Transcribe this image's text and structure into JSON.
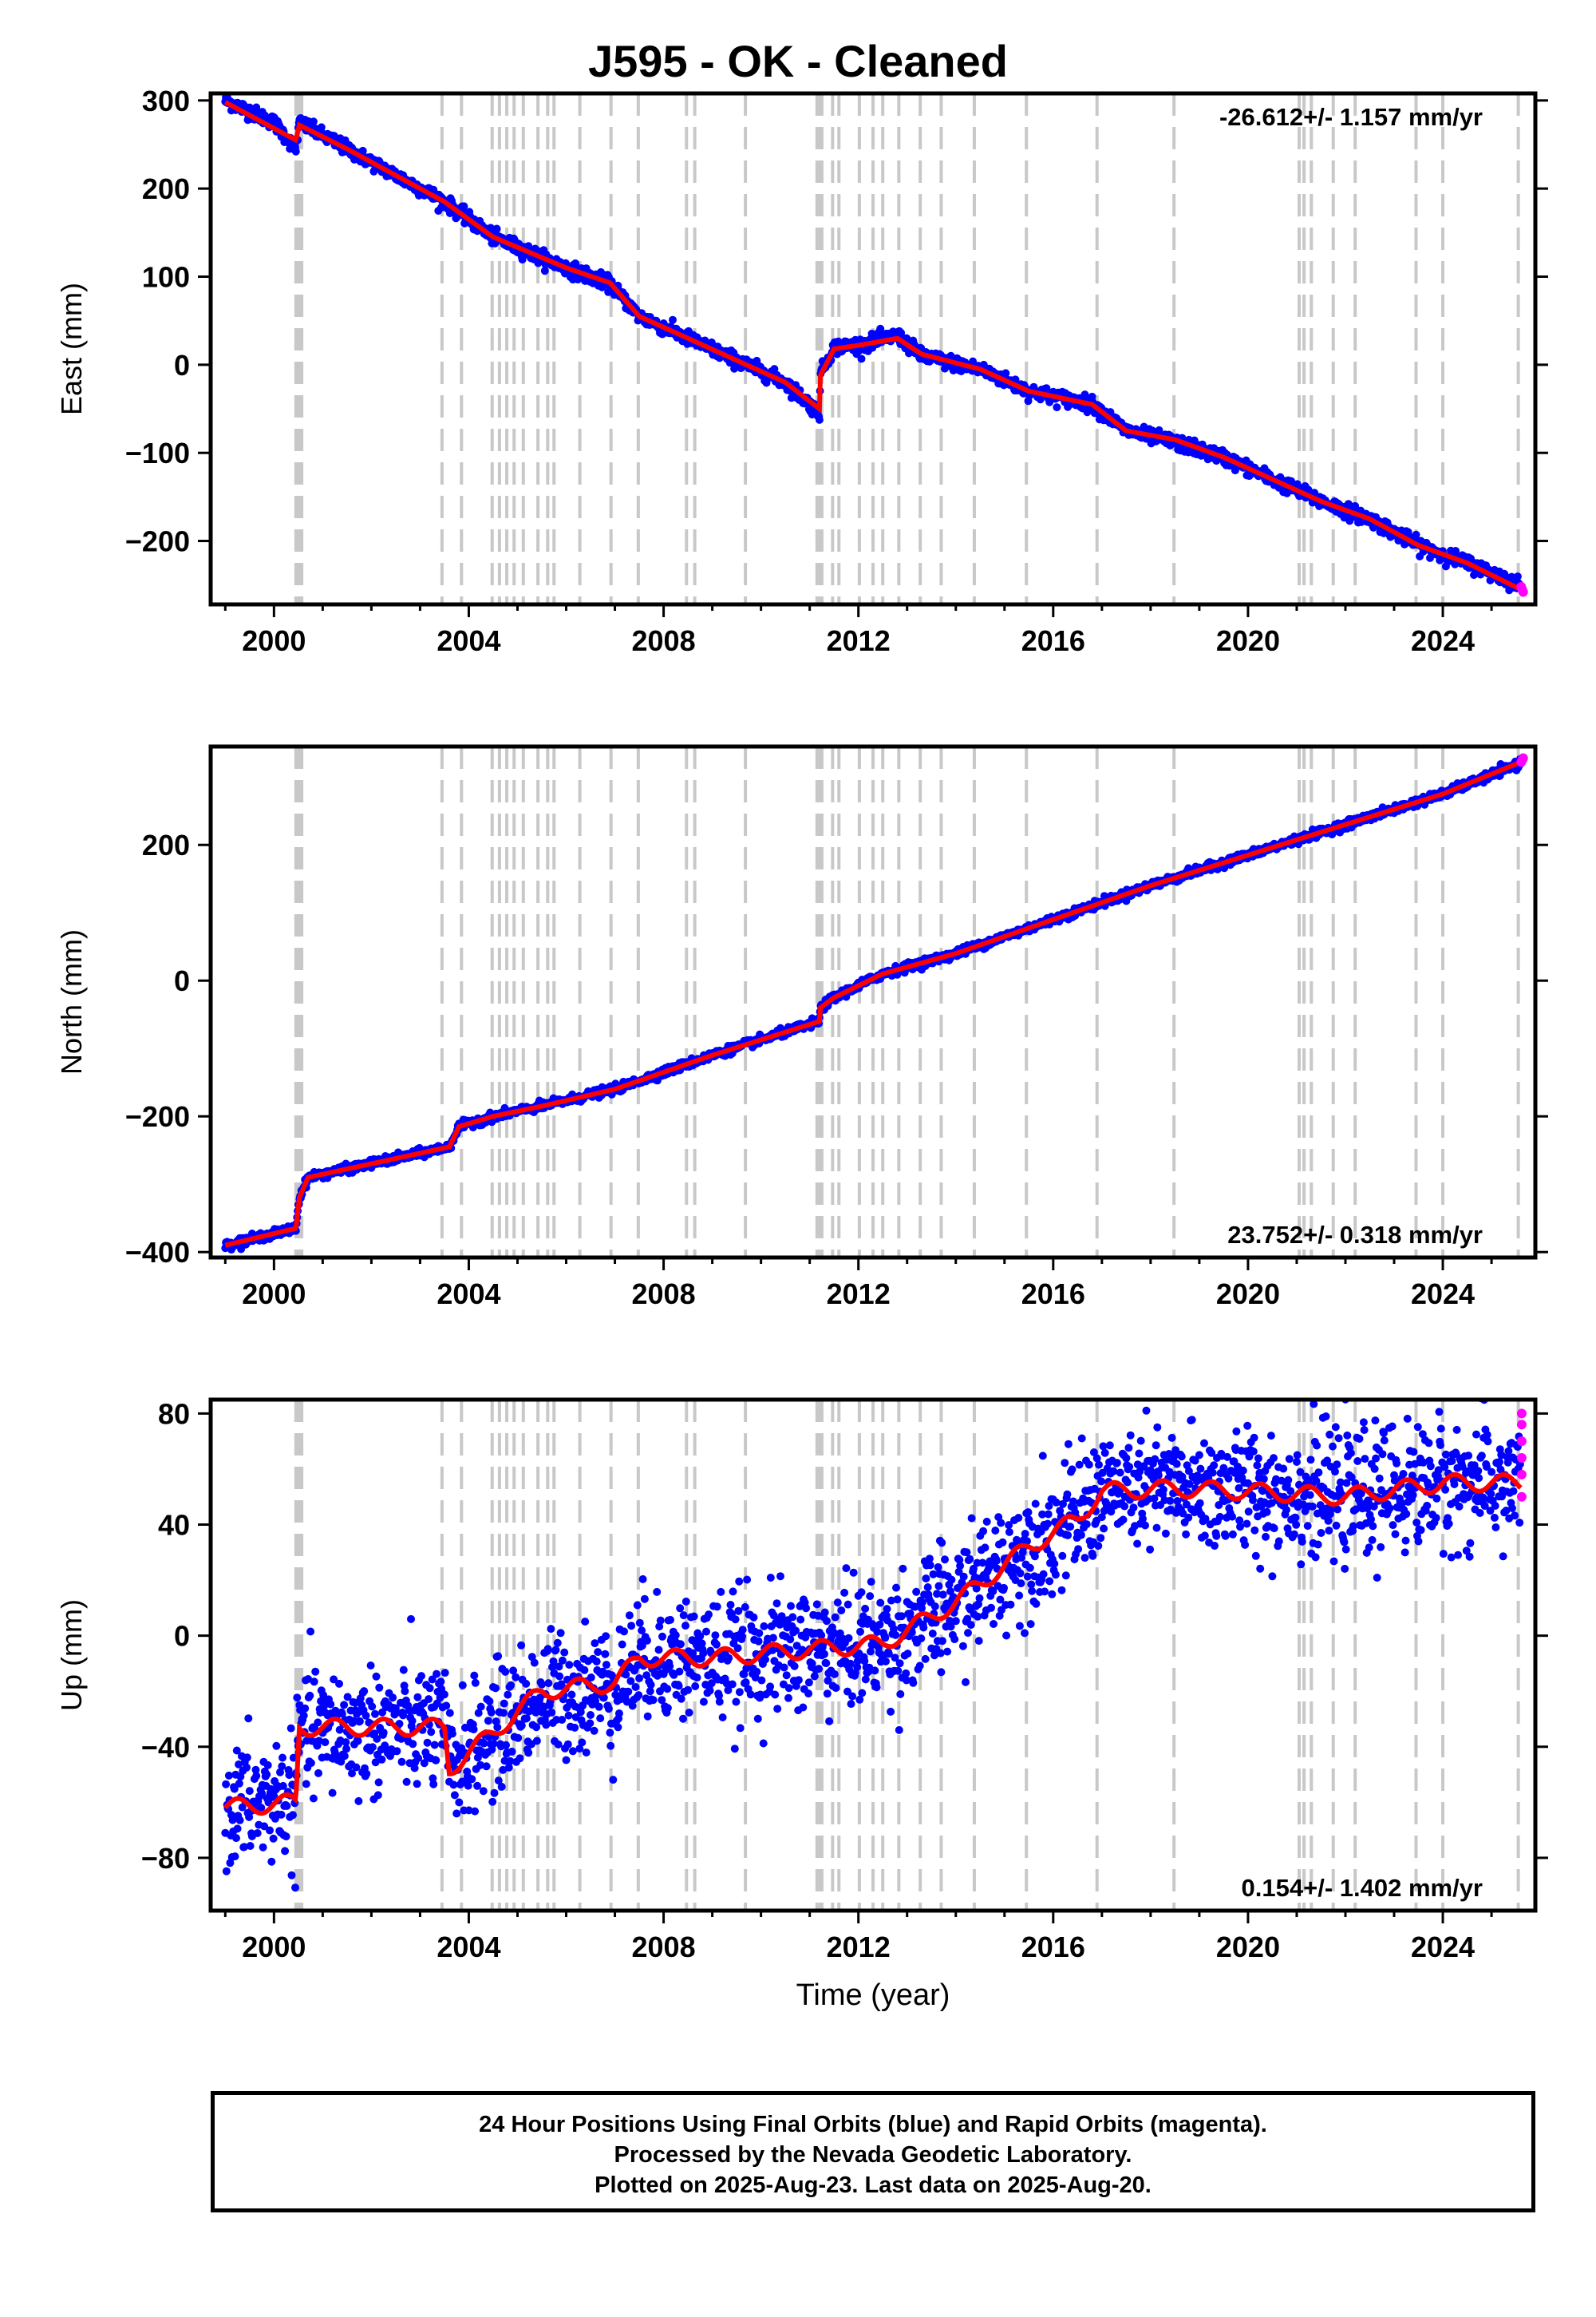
{
  "page": {
    "title": "J595  - OK - Cleaned",
    "footer_lines": [
      "24 Hour Positions Using Final Orbits (blue) and Rapid Orbits (magenta).",
      "Processed by the Nevada Geodetic Laboratory.",
      "Plotted on 2025-Aug-23. Last data on 2025-Aug-20."
    ]
  },
  "colors": {
    "final_orbits": "#0000ff",
    "rapid_orbits": "#ff00ff",
    "model": "#ff0000",
    "event_lines": "#c8c8c8"
  },
  "chart_data": [
    {
      "type": "scatter",
      "title": "J595  - OK - Cleaned",
      "xlabel": "",
      "ylabel": "East (mm)",
      "xlim": [
        1998.7,
        2025.9
      ],
      "ylim": [
        -272,
        308
      ],
      "xticks": [
        2000,
        2004,
        2008,
        2012,
        2016,
        2020,
        2024
      ],
      "yticks": [
        -200,
        -100,
        0,
        100,
        200,
        300
      ],
      "rate_label": "-26.612+/- 1.157 mm/yr",
      "rate_position": "top-right",
      "grid": false,
      "series": [
        {
          "name": "Final Orbits",
          "color": "#0000ff",
          "noise": 4,
          "x": [
            1999.0,
            2000.0,
            2000.45,
            2000.52,
            2001.5,
            2003.5,
            2004.5,
            2006.0,
            2006.9,
            2007.5,
            2008.5,
            2009.5,
            2010.5,
            2011.2,
            2011.22,
            2011.5,
            2012.0,
            2012.8,
            2013.3,
            2014.5,
            2015.5,
            2016.8,
            2017.5,
            2018.5,
            2019.5,
            2020.5,
            2021.5,
            2022.5,
            2023.5,
            2024.5,
            2025.6
          ],
          "y": [
            300,
            275,
            245,
            275,
            245,
            185,
            145,
            110,
            92,
            55,
            30,
            5,
            -20,
            -55,
            -10,
            20,
            22,
            33,
            10,
            -5,
            -30,
            -45,
            -75,
            -88,
            -105,
            -130,
            -155,
            -175,
            -205,
            -225,
            -250
          ]
        },
        {
          "name": "Rapid Orbits",
          "color": "#ff00ff",
          "noise": 2,
          "x": [
            2025.61,
            2025.63,
            2025.65
          ],
          "y": [
            -252,
            -255,
            -258
          ]
        }
      ],
      "model": {
        "name": "Model",
        "color": "#ff0000",
        "x": [
          1999.0,
          2000.45,
          2000.52,
          2001.5,
          2003.5,
          2004.5,
          2006.0,
          2006.9,
          2007.5,
          2008.5,
          2009.5,
          2010.5,
          2011.2,
          2011.22,
          2011.5,
          2012.0,
          2012.8,
          2013.3,
          2014.5,
          2015.5,
          2016.8,
          2017.5,
          2018.5,
          2019.5,
          2020.5,
          2021.5,
          2022.5,
          2023.5,
          2024.5,
          2025.6
        ],
        "y": [
          298,
          255,
          272,
          245,
          185,
          145,
          110,
          93,
          55,
          30,
          5,
          -20,
          -50,
          -12,
          18,
          22,
          30,
          12,
          -5,
          -30,
          -45,
          -75,
          -85,
          -105,
          -130,
          -155,
          -175,
          -205,
          -225,
          -255
        ]
      }
    },
    {
      "type": "scatter",
      "title": "",
      "xlabel": "",
      "ylabel": "North (mm)",
      "xlim": [
        1998.7,
        2025.9
      ],
      "ylim": [
        -408,
        345
      ],
      "xticks": [
        2000,
        2004,
        2008,
        2012,
        2016,
        2020,
        2024
      ],
      "yticks": [
        -400,
        -200,
        0,
        200
      ],
      "rate_label": "23.752+/- 0.318 mm/yr",
      "rate_position": "bottom-right",
      "grid": false,
      "series": [
        {
          "name": "Final Orbits",
          "color": "#0000ff",
          "noise": 3,
          "x": [
            1999.0,
            2000.45,
            2000.52,
            2000.7,
            2003.6,
            2003.8,
            2004.5,
            2005.5,
            2007.0,
            2009.0,
            2011.2,
            2011.22,
            2011.5,
            2012.5,
            2014.0,
            2016.0,
            2018.0,
            2020.0,
            2022.0,
            2024.0,
            2025.6
          ],
          "y": [
            -390,
            -365,
            -320,
            -290,
            -245,
            -215,
            -200,
            -185,
            -160,
            -110,
            -60,
            -40,
            -25,
            10,
            40,
            90,
            140,
            185,
            230,
            275,
            320
          ]
        },
        {
          "name": "Rapid Orbits",
          "color": "#ff00ff",
          "noise": 2,
          "x": [
            2025.61,
            2025.63,
            2025.65
          ],
          "y": [
            322,
            325,
            328
          ]
        }
      ],
      "model": {
        "name": "Model",
        "color": "#ff0000",
        "x": [
          1999.0,
          2000.45,
          2000.52,
          2000.7,
          2003.6,
          2003.8,
          2004.5,
          2005.5,
          2007.0,
          2009.0,
          2011.2,
          2011.22,
          2011.5,
          2012.5,
          2014.0,
          2016.0,
          2018.0,
          2020.0,
          2022.0,
          2024.0,
          2025.6
        ],
        "y": [
          -390,
          -365,
          -320,
          -290,
          -245,
          -215,
          -200,
          -185,
          -160,
          -110,
          -60,
          -40,
          -25,
          10,
          40,
          90,
          140,
          185,
          230,
          275,
          322
        ]
      }
    },
    {
      "type": "scatter",
      "title": "",
      "xlabel": "Time (year)",
      "ylabel": "Up (mm)",
      "xlim": [
        1998.7,
        2025.9
      ],
      "ylim": [
        -99,
        85
      ],
      "xticks": [
        2000,
        2004,
        2008,
        2012,
        2016,
        2020,
        2024
      ],
      "yticks": [
        -80,
        -40,
        0,
        40,
        80
      ],
      "rate_label": "0.154+/- 1.402 mm/yr",
      "rate_position": "bottom-right",
      "grid": false,
      "series": [
        {
          "name": "Final Orbits",
          "color": "#0000ff",
          "noise": 11,
          "x": [
            1999.0,
            2000.45,
            2000.52,
            2003.5,
            2003.6,
            2004.5,
            2005.5,
            2007.0,
            2007.5,
            2009.0,
            2011.0,
            2012.5,
            2014.0,
            2015.5,
            2016.5,
            2017.0,
            2018.5,
            2020.0,
            2022.0,
            2024.0,
            2025.6
          ],
          "y": [
            -62,
            -58,
            -35,
            -33,
            -48,
            -35,
            -22,
            -18,
            -8,
            -8,
            -5,
            -3,
            12,
            32,
            42,
            52,
            53,
            52,
            50,
            55,
            55
          ]
        },
        {
          "name": "Rapid Orbits",
          "color": "#ff00ff",
          "noise": 0,
          "x": [
            2025.62,
            2025.62,
            2025.62,
            2025.62,
            2025.62,
            2025.62
          ],
          "y": [
            80,
            76,
            70,
            64,
            58,
            50
          ]
        }
      ],
      "model": {
        "name": "Model",
        "color": "#ff0000",
        "seasonal": 3,
        "x": [
          1999.0,
          2000.45,
          2000.52,
          2003.5,
          2003.6,
          2004.5,
          2005.5,
          2007.0,
          2007.5,
          2009.0,
          2011.0,
          2012.5,
          2014.0,
          2015.5,
          2016.5,
          2017.0,
          2018.5,
          2020.0,
          2022.0,
          2024.0,
          2025.6
        ],
        "y": [
          -62,
          -60,
          -33,
          -33,
          -48,
          -35,
          -20,
          -17,
          -8,
          -8,
          -5,
          -3,
          12,
          32,
          42,
          52,
          53,
          52,
          50,
          55,
          55
        ]
      }
    }
  ],
  "event_lines": [
    2000.45,
    2000.48,
    2000.51,
    2000.54,
    2000.57,
    2003.45,
    2003.85,
    2004.48,
    2004.63,
    2004.78,
    2004.93,
    2005.12,
    2005.42,
    2005.62,
    2005.75,
    2006.28,
    2006.92,
    2007.48,
    2008.47,
    2008.64,
    2009.68,
    2011.15,
    2011.2,
    2011.25,
    2011.47,
    2011.6,
    2012.02,
    2012.3,
    2012.5,
    2012.83,
    2013.27,
    2013.7,
    2014.38,
    2015.45,
    2016.9,
    2018.48,
    2021.05,
    2021.15,
    2021.3,
    2021.75,
    2022.2,
    2023.45,
    2024.0,
    2025.55
  ]
}
